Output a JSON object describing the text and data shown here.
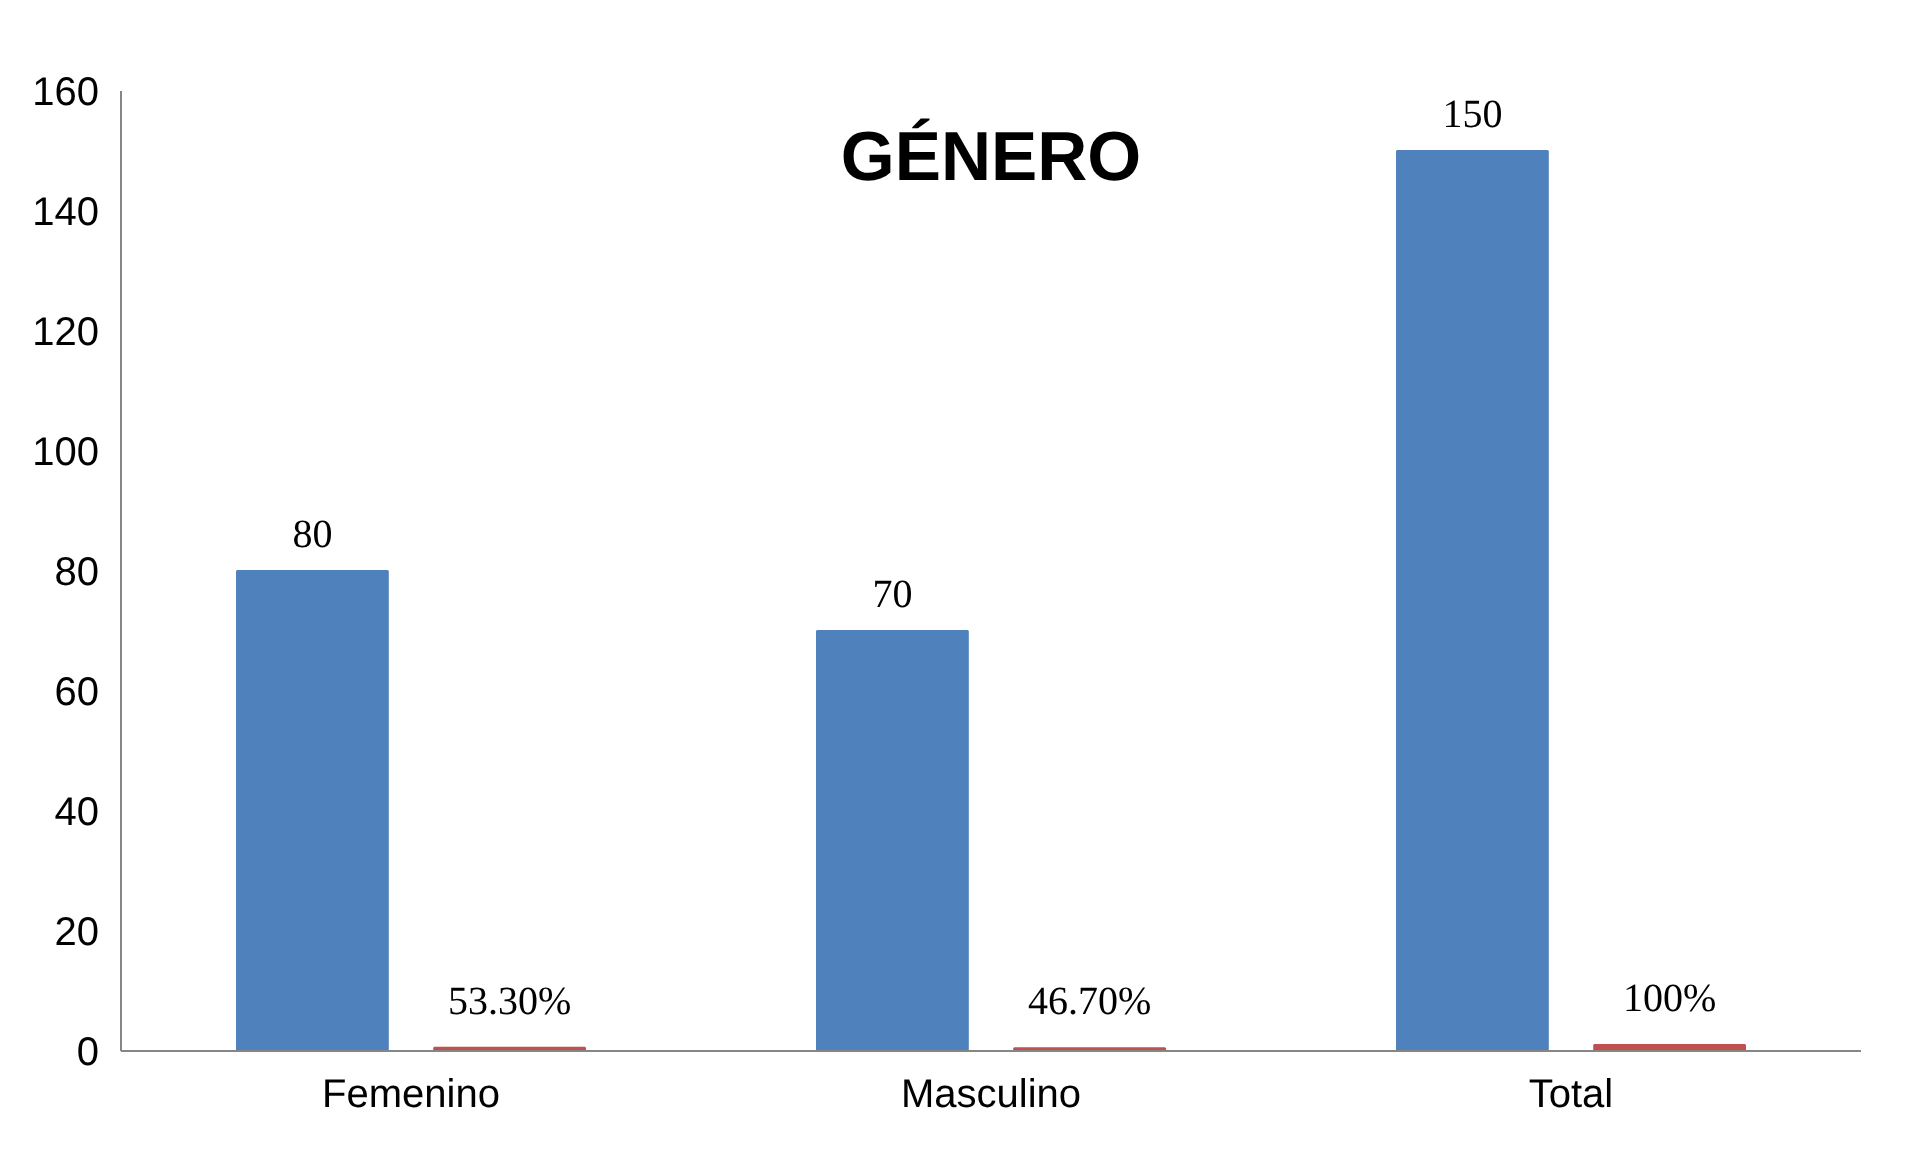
{
  "chart_data": {
    "type": "bar",
    "title": "GÉNERO",
    "categories": [
      "Femenino",
      "Masculino",
      "Total"
    ],
    "series": [
      {
        "color": "#4f81bd",
        "values": [
          80,
          70,
          150
        ],
        "value_labels": [
          "80",
          "70",
          "150"
        ]
      },
      {
        "color": "#c0504d",
        "values": [
          0.533,
          0.467,
          1
        ],
        "value_labels": [
          "53.30%",
          "46.70%",
          "100%"
        ]
      }
    ],
    "ylim": [
      0,
      160
    ],
    "yticks": [
      0,
      20,
      40,
      60,
      80,
      100,
      120,
      140,
      160
    ],
    "grid": false
  }
}
